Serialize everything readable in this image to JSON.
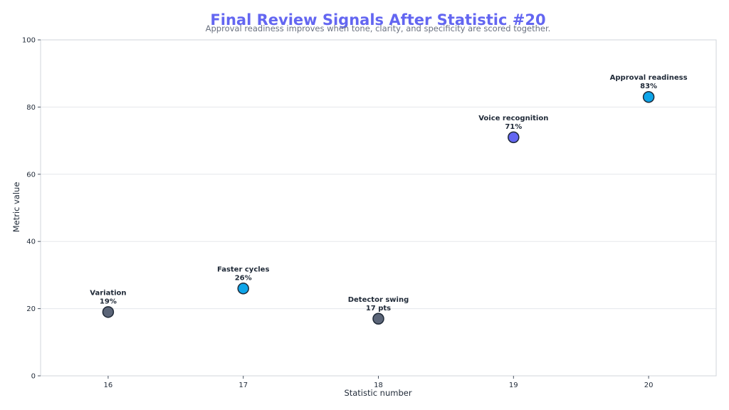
{
  "chart_data": {
    "type": "scatter",
    "title": "Final Review Signals After Statistic #20",
    "subtitle": "Approval readiness improves when tone, clarity, and specificity are scored together.",
    "xlabel": "Statistic number",
    "ylabel": "Metric value",
    "xlim": [
      15.5,
      20.5
    ],
    "ylim": [
      0,
      100
    ],
    "xticks": [
      16,
      17,
      18,
      19,
      20
    ],
    "yticks": [
      0,
      20,
      40,
      60,
      80,
      100
    ],
    "grid": "horizontal",
    "points": [
      {
        "x": 16,
        "y": 19,
        "label": "Variation",
        "value_label": "19%",
        "color": "#5b6578"
      },
      {
        "x": 17,
        "y": 26,
        "label": "Faster cycles",
        "value_label": "26%",
        "color": "#0ea5e9"
      },
      {
        "x": 18,
        "y": 17,
        "label": "Detector swing",
        "value_label": "17 pts",
        "color": "#5b6578"
      },
      {
        "x": 19,
        "y": 71,
        "label": "Voice recognition",
        "value_label": "71%",
        "color": "#6366f1"
      },
      {
        "x": 20,
        "y": 83,
        "label": "Approval readiness",
        "value_label": "83%",
        "color": "#0ea5e9"
      }
    ]
  },
  "colors": {
    "title": "#6366f1",
    "grid": "#e5e7eb",
    "frame": "#d1d5db",
    "marker_edge": "#1f2937"
  }
}
